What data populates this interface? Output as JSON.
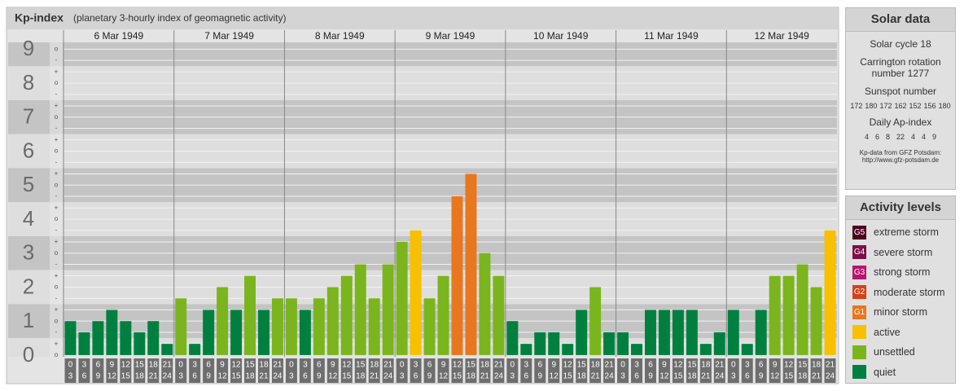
{
  "chart_data": {
    "type": "bar",
    "title": "Kp-index",
    "subtitle": "(planetary 3-hourly index of geomagnetic activity)",
    "ylim": [
      -0.05,
      9.2
    ],
    "yticks": [
      0,
      1,
      2,
      3,
      4,
      5,
      6,
      7,
      8,
      9
    ],
    "minor_yticks": [
      {
        "value": 0,
        "label": "o"
      },
      {
        "value": 0.33,
        "label": "+"
      },
      {
        "value": 0.67,
        "label": "-"
      },
      {
        "value": 1,
        "label": "o"
      },
      {
        "value": 1.33,
        "label": "+"
      },
      {
        "value": 1.67,
        "label": "-"
      },
      {
        "value": 2,
        "label": "o"
      },
      {
        "value": 2.33,
        "label": "+"
      },
      {
        "value": 2.67,
        "label": "-"
      },
      {
        "value": 3,
        "label": "o"
      },
      {
        "value": 3.33,
        "label": "+"
      },
      {
        "value": 3.67,
        "label": "-"
      },
      {
        "value": 4,
        "label": "o"
      },
      {
        "value": 4.33,
        "label": "+"
      },
      {
        "value": 4.67,
        "label": "-"
      },
      {
        "value": 5,
        "label": "o"
      },
      {
        "value": 5.33,
        "label": "+"
      },
      {
        "value": 5.67,
        "label": "-"
      },
      {
        "value": 6,
        "label": "o"
      },
      {
        "value": 6.33,
        "label": "+"
      },
      {
        "value": 6.67,
        "label": "-"
      },
      {
        "value": 7,
        "label": "o"
      },
      {
        "value": 7.33,
        "label": "+"
      },
      {
        "value": 7.67,
        "label": "-"
      },
      {
        "value": 8,
        "label": "o"
      },
      {
        "value": 8.33,
        "label": "+"
      },
      {
        "value": 8.67,
        "label": "-"
      },
      {
        "value": 9,
        "label": "o"
      }
    ],
    "hours": [
      0,
      3,
      6,
      9,
      12,
      15,
      18,
      21,
      24
    ],
    "grid": true,
    "days": [
      {
        "date": "6 Mar 1949",
        "values": [
          1,
          0.67,
          1,
          1.33,
          1,
          0.67,
          1,
          0.33
        ],
        "colors": [
          "#00803f",
          "#00803f",
          "#00803f",
          "#00803f",
          "#00803f",
          "#00803f",
          "#00803f",
          "#00803f"
        ]
      },
      {
        "date": "7 Mar 1949",
        "values": [
          1.67,
          0.33,
          1.33,
          2,
          1.33,
          2.33,
          1.33,
          1.67
        ],
        "colors": [
          "#7ab51d",
          "#00803f",
          "#00803f",
          "#7ab51d",
          "#00803f",
          "#7ab51d",
          "#00803f",
          "#7ab51d"
        ]
      },
      {
        "date": "8 Mar 1949",
        "values": [
          1.67,
          1.33,
          1.67,
          2,
          2.33,
          2.67,
          1.67,
          2.67
        ],
        "colors": [
          "#7ab51d",
          "#00803f",
          "#7ab51d",
          "#7ab51d",
          "#7ab51d",
          "#7ab51d",
          "#7ab51d",
          "#7ab51d"
        ]
      },
      {
        "date": "9 Mar 1949",
        "values": [
          3.33,
          3.67,
          1.67,
          2.33,
          4.67,
          5.33,
          3,
          2.33
        ],
        "colors": [
          "#7ab51d",
          "#f7c000",
          "#7ab51d",
          "#7ab51d",
          "#e8771e",
          "#e8771e",
          "#7ab51d",
          "#7ab51d"
        ]
      },
      {
        "date": "10 Mar 1949",
        "values": [
          1,
          0.33,
          0.67,
          0.67,
          0.33,
          1.33,
          2,
          0.67
        ],
        "colors": [
          "#00803f",
          "#00803f",
          "#00803f",
          "#00803f",
          "#00803f",
          "#00803f",
          "#7ab51d",
          "#00803f"
        ]
      },
      {
        "date": "11 Mar 1949",
        "values": [
          0.67,
          0.33,
          1.33,
          1.33,
          1.33,
          1.33,
          0.33,
          0.67
        ],
        "colors": [
          "#00803f",
          "#00803f",
          "#00803f",
          "#00803f",
          "#00803f",
          "#00803f",
          "#00803f",
          "#00803f"
        ]
      },
      {
        "date": "12 Mar 1949",
        "values": [
          1.33,
          0.33,
          1.33,
          2.33,
          2.33,
          2.67,
          2,
          3.67
        ],
        "colors": [
          "#00803f",
          "#00803f",
          "#00803f",
          "#7ab51d",
          "#7ab51d",
          "#7ab51d",
          "#7ab51d",
          "#f7c000"
        ]
      }
    ]
  },
  "solar_data": {
    "title": "Solar data",
    "cycle": "Solar cycle 18",
    "rotation": "Carrington rotation number 1277",
    "sunspot_title": "Sunspot number",
    "sunspot": [
      172,
      180,
      172,
      162,
      152,
      156,
      180
    ],
    "ap_title": "Daily Ap-index",
    "ap": [
      4,
      6,
      8,
      22,
      4,
      4,
      9
    ],
    "source": "Kp-data from GFZ Potsdam:",
    "url": "http://www.gfz-potsdam.de"
  },
  "activity_levels": {
    "title": "Activity levels",
    "levels": [
      {
        "badge": "G5",
        "label": "extreme storm",
        "color": "#4d0020"
      },
      {
        "badge": "G4",
        "label": "severe storm",
        "color": "#7d1048"
      },
      {
        "badge": "G3",
        "label": "strong storm",
        "color": "#b8166e"
      },
      {
        "badge": "G2",
        "label": "moderate storm",
        "color": "#d8401a"
      },
      {
        "badge": "G1",
        "label": "minor storm",
        "color": "#e8771e"
      },
      {
        "label": "active",
        "color": "#f7c000"
      },
      {
        "label": "unsettled",
        "color": "#7ab51d"
      },
      {
        "label": "quiet",
        "color": "#00803f"
      }
    ]
  }
}
